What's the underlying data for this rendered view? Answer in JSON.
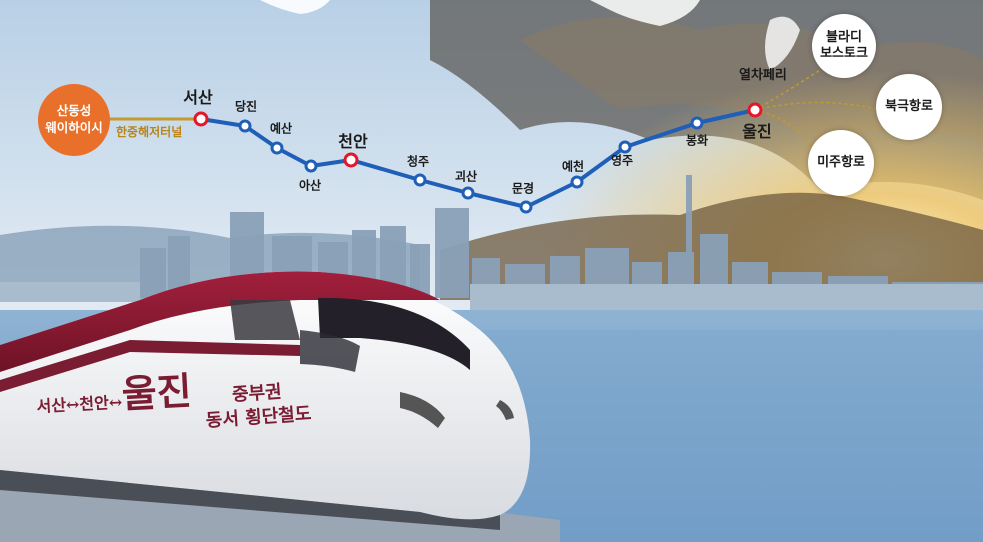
{
  "origin": {
    "line1": "산동성",
    "line2": "웨이하이시"
  },
  "tunnel_label": "한중해저터널",
  "stations": {
    "s1": "서산",
    "s2": "당진",
    "s3": "예산",
    "s4": "아산",
    "s5": "천안",
    "s6": "청주",
    "s7": "괴산",
    "s8": "문경",
    "s9": "예천",
    "s10": "영주",
    "s11": "봉화",
    "s12": "울진"
  },
  "ferry_label": "열차페리",
  "destinations": {
    "vladivostok": {
      "line1": "블라디",
      "line2": "보스토크"
    },
    "arctic": "북극항로",
    "america": "미주항로"
  },
  "train": {
    "route_small1": "서산",
    "arrow1": "↔",
    "route_small2": "천안",
    "arrow2": "↔",
    "route_big": "울진",
    "caption_line1": "중부권",
    "caption_line2": "동서 횡단철도"
  },
  "colors": {
    "line": "#1f5fb8",
    "major_station": "#e3162b",
    "origin": "#e8702a",
    "tunnel": "#c29a2e",
    "train_text": "#7a1d33"
  }
}
